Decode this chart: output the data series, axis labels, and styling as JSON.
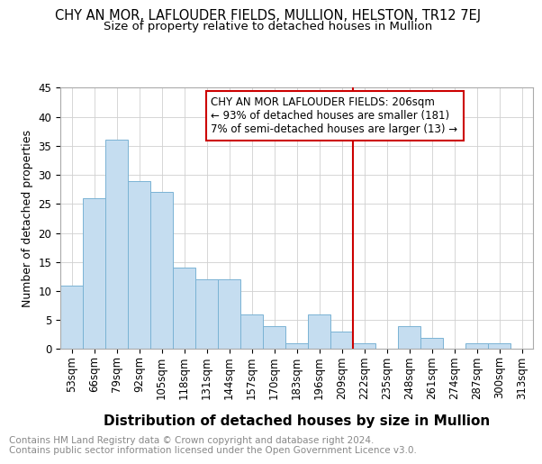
{
  "title": "CHY AN MOR, LAFLOUDER FIELDS, MULLION, HELSTON, TR12 7EJ",
  "subtitle": "Size of property relative to detached houses in Mullion",
  "xlabel": "Distribution of detached houses by size in Mullion",
  "ylabel": "Number of detached properties",
  "categories": [
    "53sqm",
    "66sqm",
    "79sqm",
    "92sqm",
    "105sqm",
    "118sqm",
    "131sqm",
    "144sqm",
    "157sqm",
    "170sqm",
    "183sqm",
    "196sqm",
    "209sqm",
    "222sqm",
    "235sqm",
    "248sqm",
    "261sqm",
    "274sqm",
    "287sqm",
    "300sqm",
    "313sqm"
  ],
  "values": [
    11,
    26,
    36,
    29,
    27,
    14,
    12,
    12,
    6,
    4,
    1,
    6,
    3,
    1,
    0,
    4,
    2,
    0,
    1,
    1,
    0
  ],
  "bar_color": "#c5ddf0",
  "bar_edge_color": "#7ab3d4",
  "vline_index": 12,
  "annotation_text": "CHY AN MOR LAFLOUDER FIELDS: 206sqm\n← 93% of detached houses are smaller (181)\n7% of semi-detached houses are larger (13) →",
  "annotation_box_color": "#ffffff",
  "annotation_border_color": "#cc0000",
  "vline_color": "#cc0000",
  "ylim": [
    0,
    45
  ],
  "yticks": [
    0,
    5,
    10,
    15,
    20,
    25,
    30,
    35,
    40,
    45
  ],
  "grid_color": "#d0d0d0",
  "background_color": "#ffffff",
  "footer_text": "Contains HM Land Registry data © Crown copyright and database right 2024.\nContains public sector information licensed under the Open Government Licence v3.0.",
  "title_fontsize": 10.5,
  "subtitle_fontsize": 9.5,
  "xlabel_fontsize": 11,
  "ylabel_fontsize": 9,
  "tick_fontsize": 8.5,
  "ann_fontsize": 8.5,
  "footer_fontsize": 7.5
}
